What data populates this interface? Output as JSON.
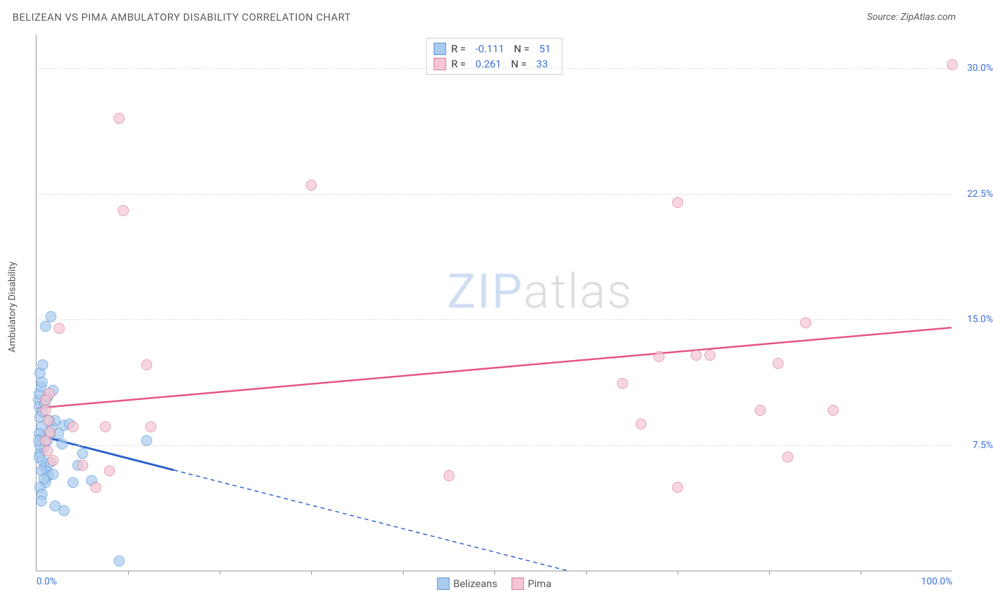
{
  "header": {
    "title": "BELIZEAN VS PIMA AMBULATORY DISABILITY CORRELATION CHART",
    "source_prefix": "Source: ",
    "source_name": "ZipAtlas.com"
  },
  "chart": {
    "type": "scatter",
    "y_axis_title": "Ambulatory Disability",
    "background_color": "#ffffff",
    "grid_color": "#dddddd",
    "axis_color": "#999999",
    "tick_label_color": "#3a6fd8",
    "xlim": [
      0,
      100
    ],
    "ylim": [
      0,
      32
    ],
    "yticks": [
      {
        "v": 7.5,
        "label": "7.5%"
      },
      {
        "v": 15.0,
        "label": "15.0%"
      },
      {
        "v": 22.5,
        "label": "22.5%"
      },
      {
        "v": 30.0,
        "label": "30.0%"
      }
    ],
    "xticks_minor": [
      10,
      20,
      30,
      40,
      50,
      60,
      70,
      80,
      90
    ],
    "xticks_labeled": [
      {
        "v": 0,
        "label": "0.0%"
      },
      {
        "v": 100,
        "label": "100.0%"
      }
    ],
    "watermark": {
      "zip": "ZIP",
      "atlas": "atlas"
    },
    "series": [
      {
        "name": "Belizeans",
        "fill_color": "#a9cbef",
        "stroke_color": "#5a95d6",
        "fill_opacity": 0.7,
        "marker_radius": 8,
        "R": "-0.111",
        "N": "51",
        "trend": {
          "color": "#2b62c9",
          "solid_width": 3,
          "dash_width": 1.5,
          "x1": 0,
          "y1": 8.1,
          "x2_solid": 15,
          "y2_solid": 6.0,
          "x2_dash": 58,
          "y2_dash": 0.0
        },
        "points": [
          {
            "x": 0.2,
            "y": 10.2
          },
          {
            "x": 0.3,
            "y": 9.8
          },
          {
            "x": 0.4,
            "y": 9.2
          },
          {
            "x": 0.5,
            "y": 8.6
          },
          {
            "x": 0.3,
            "y": 10.6
          },
          {
            "x": 0.6,
            "y": 8.0
          },
          {
            "x": 0.5,
            "y": 11.0
          },
          {
            "x": 0.8,
            "y": 7.4
          },
          {
            "x": 0.4,
            "y": 7.0
          },
          {
            "x": 0.6,
            "y": 6.6
          },
          {
            "x": 0.9,
            "y": 6.2
          },
          {
            "x": 1.1,
            "y": 6.0
          },
          {
            "x": 1.3,
            "y": 5.7
          },
          {
            "x": 1.0,
            "y": 5.3
          },
          {
            "x": 1.2,
            "y": 7.8
          },
          {
            "x": 1.5,
            "y": 8.2
          },
          {
            "x": 1.7,
            "y": 8.6
          },
          {
            "x": 1.4,
            "y": 9.0
          },
          {
            "x": 0.7,
            "y": 9.5
          },
          {
            "x": 0.3,
            "y": 8.2
          },
          {
            "x": 0.4,
            "y": 7.5
          },
          {
            "x": 0.9,
            "y": 10.0
          },
          {
            "x": 0.5,
            "y": 6.0
          },
          {
            "x": 0.8,
            "y": 5.5
          },
          {
            "x": 1.0,
            "y": 14.6
          },
          {
            "x": 1.6,
            "y": 15.2
          },
          {
            "x": 1.2,
            "y": 10.4
          },
          {
            "x": 1.8,
            "y": 10.8
          },
          {
            "x": 3.0,
            "y": 8.7
          },
          {
            "x": 2.0,
            "y": 9.0
          },
          {
            "x": 2.4,
            "y": 8.2
          },
          {
            "x": 2.8,
            "y": 7.6
          },
          {
            "x": 3.6,
            "y": 8.8
          },
          {
            "x": 4.0,
            "y": 5.3
          },
          {
            "x": 6.0,
            "y": 5.4
          },
          {
            "x": 5.0,
            "y": 7.0
          },
          {
            "x": 4.5,
            "y": 6.3
          },
          {
            "x": 12.0,
            "y": 7.8
          },
          {
            "x": 2.0,
            "y": 3.9
          },
          {
            "x": 3.0,
            "y": 3.6
          },
          {
            "x": 9.0,
            "y": 0.6
          },
          {
            "x": 1.5,
            "y": 6.5
          },
          {
            "x": 1.8,
            "y": 5.8
          },
          {
            "x": 0.6,
            "y": 11.3
          },
          {
            "x": 0.4,
            "y": 11.8
          },
          {
            "x": 0.7,
            "y": 12.3
          },
          {
            "x": 0.2,
            "y": 7.8
          },
          {
            "x": 0.3,
            "y": 6.8
          },
          {
            "x": 0.4,
            "y": 5.0
          },
          {
            "x": 0.6,
            "y": 4.6
          },
          {
            "x": 0.5,
            "y": 4.2
          }
        ]
      },
      {
        "name": "Pima",
        "fill_color": "#f6c6d2",
        "stroke_color": "#d77a95",
        "fill_opacity": 0.7,
        "marker_radius": 8,
        "R": "0.261",
        "N": "33",
        "trend": {
          "color": "#e55383",
          "solid_width": 2.5,
          "x1": 0,
          "y1": 9.7,
          "x2": 100,
          "y2": 14.5
        },
        "points": [
          {
            "x": 100.0,
            "y": 30.2
          },
          {
            "x": 9.0,
            "y": 27.0
          },
          {
            "x": 30.0,
            "y": 23.0
          },
          {
            "x": 70.0,
            "y": 22.0
          },
          {
            "x": 9.5,
            "y": 21.5
          },
          {
            "x": 84.0,
            "y": 14.8
          },
          {
            "x": 68.0,
            "y": 12.8
          },
          {
            "x": 72.0,
            "y": 12.9
          },
          {
            "x": 73.5,
            "y": 12.9
          },
          {
            "x": 81.0,
            "y": 12.4
          },
          {
            "x": 64.0,
            "y": 11.2
          },
          {
            "x": 66.0,
            "y": 8.8
          },
          {
            "x": 87.0,
            "y": 9.6
          },
          {
            "x": 79.0,
            "y": 9.6
          },
          {
            "x": 82.0,
            "y": 6.8
          },
          {
            "x": 70.0,
            "y": 5.0
          },
          {
            "x": 45.0,
            "y": 5.7
          },
          {
            "x": 7.5,
            "y": 8.6
          },
          {
            "x": 12.5,
            "y": 8.6
          },
          {
            "x": 12.0,
            "y": 12.3
          },
          {
            "x": 2.5,
            "y": 14.5
          },
          {
            "x": 1.0,
            "y": 9.6
          },
          {
            "x": 1.3,
            "y": 9.0
          },
          {
            "x": 1.5,
            "y": 8.3
          },
          {
            "x": 1.0,
            "y": 7.8
          },
          {
            "x": 1.2,
            "y": 7.2
          },
          {
            "x": 1.8,
            "y": 6.6
          },
          {
            "x": 4.0,
            "y": 8.6
          },
          {
            "x": 8.0,
            "y": 6.0
          },
          {
            "x": 5.0,
            "y": 6.3
          },
          {
            "x": 6.5,
            "y": 5.0
          },
          {
            "x": 1.4,
            "y": 10.6
          },
          {
            "x": 1.0,
            "y": 10.2
          }
        ]
      }
    ],
    "legend_bottom": [
      {
        "label": "Belizeans",
        "fill": "#a9cbef",
        "stroke": "#5a95d6"
      },
      {
        "label": "Pima",
        "fill": "#f6c6d2",
        "stroke": "#d77a95"
      }
    ]
  }
}
